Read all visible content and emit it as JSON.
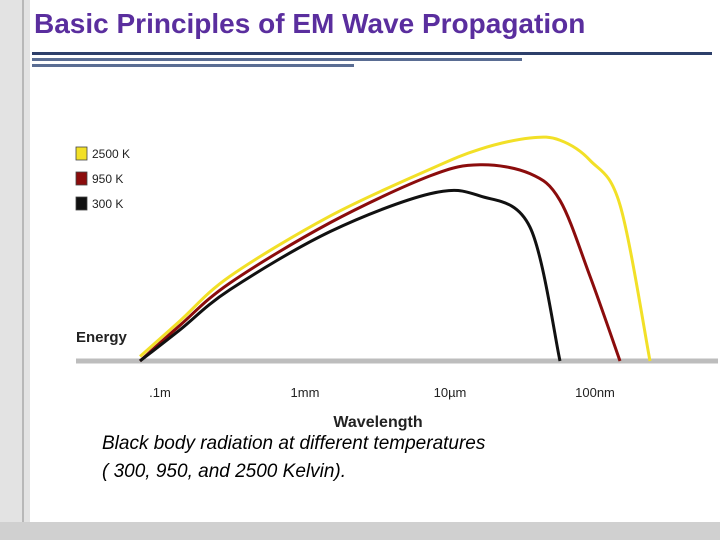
{
  "slide": {
    "title": "Basic Principles of EM Wave Propagation",
    "caption_line1": "Black body radiation at different temperatures",
    "caption_line2": "( 300, 950, and 2500 Kelvin)."
  },
  "chart_data": {
    "type": "line",
    "xlabel": "Wavelength",
    "ylabel": "Energy",
    "x_ticks": [
      ".1m",
      "1mm",
      "10µm",
      "100nm"
    ],
    "y_units_note": "unitless relative energy (axis not numbered)",
    "ylim": [
      0,
      100
    ],
    "x": [
      0.1,
      0.5,
      1,
      2,
      3,
      3.5,
      4,
      4.3,
      4.6,
      4.9,
      5.2
    ],
    "series": [
      {
        "name": "2500 K",
        "color": "#f2e027",
        "values": [
          2,
          18,
          38,
          65,
          86,
          95,
          100,
          99,
          90,
          70,
          0
        ]
      },
      {
        "name": "950 K",
        "color": "#8b0c0c",
        "values": [
          0,
          16,
          35,
          62,
          83,
          88,
          84,
          72,
          38,
          0,
          null
        ]
      },
      {
        "name": "300 K",
        "color": "#111111",
        "values": [
          0,
          14,
          32,
          58,
          75,
          74,
          60,
          0,
          null,
          null,
          null
        ]
      }
    ],
    "legend_position": "top-left",
    "grid": false
  }
}
